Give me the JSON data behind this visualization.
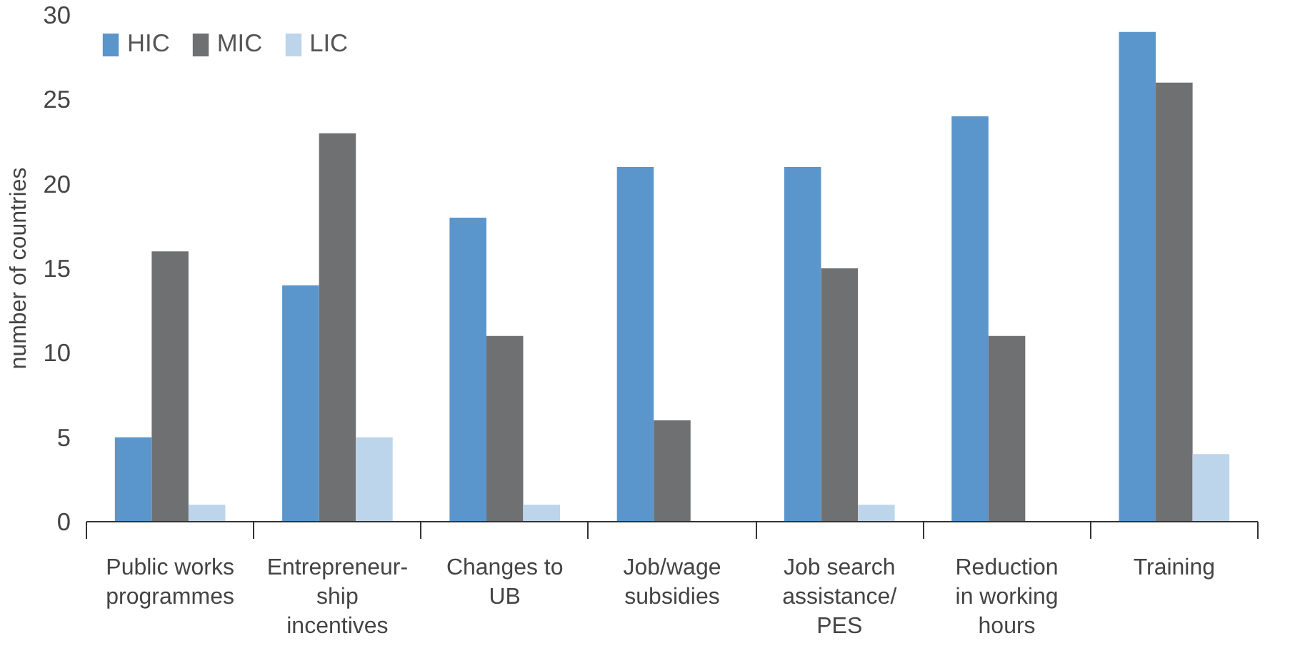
{
  "chart_data": {
    "type": "bar",
    "ylabel": "number of countries",
    "categories": [
      "Public works\nprogrammes",
      "Entrepreneur-\nship\nincentives",
      "Changes to\nUB",
      "Job/wage\nsubsidies",
      "Job search\nassistance/\nPES",
      "Reduction\nin working\nhours",
      "Training"
    ],
    "series": [
      {
        "name": "HIC",
        "color": "#5a96cc",
        "values": [
          5,
          14,
          18,
          21,
          21,
          24,
          29
        ]
      },
      {
        "name": "MIC",
        "color": "#6f7072",
        "values": [
          16,
          23,
          11,
          6,
          15,
          11,
          26
        ]
      },
      {
        "name": "LIC",
        "color": "#bcd5ea",
        "values": [
          1,
          5,
          1,
          0,
          1,
          0,
          4
        ]
      }
    ],
    "ylim": [
      0,
      30
    ],
    "yticks": [
      0,
      5,
      10,
      15,
      20,
      25,
      30
    ],
    "grid": false,
    "legend": "top left"
  }
}
